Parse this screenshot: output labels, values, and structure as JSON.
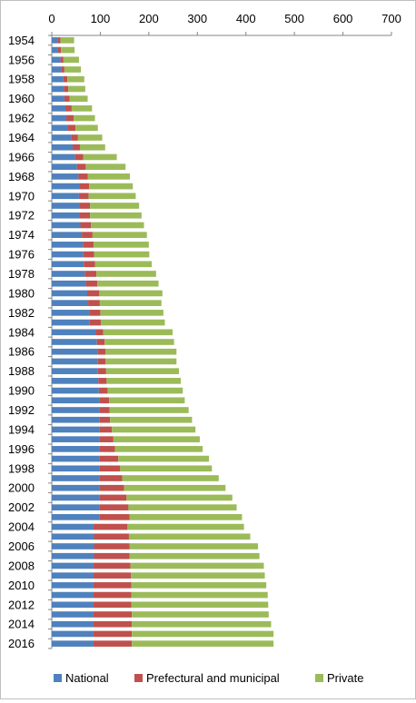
{
  "chart_data": {
    "type": "bar",
    "orientation": "horizontal",
    "stacked": true,
    "xlim": [
      0,
      700
    ],
    "x_ticks": [
      "0",
      "100",
      "200",
      "300",
      "400",
      "500",
      "600",
      "700"
    ],
    "x_axis_position": "top",
    "grid": false,
    "legend_position": "bottom",
    "categories": [
      "1954",
      "1955",
      "1956",
      "1957",
      "1958",
      "1959",
      "1960",
      "1961",
      "1962",
      "1963",
      "1964",
      "1965",
      "1966",
      "1967",
      "1968",
      "1969",
      "1970",
      "1971",
      "1972",
      "1973",
      "1974",
      "1975",
      "1976",
      "1977",
      "1978",
      "1979",
      "1980",
      "1981",
      "1982",
      "1983",
      "1984",
      "1985",
      "1986",
      "1987",
      "1988",
      "1989",
      "1990",
      "1991",
      "1992",
      "1993",
      "1994",
      "1995",
      "1996",
      "1997",
      "1998",
      "1999",
      "2000",
      "2001",
      "2002",
      "2003",
      "2004",
      "2005",
      "2006",
      "2007",
      "2008",
      "2009",
      "2010",
      "2011",
      "2012",
      "2013",
      "2014",
      "2015",
      "2016"
    ],
    "category_labels": [
      "1954",
      "",
      "1956",
      "",
      "1958",
      "",
      "1960",
      "",
      "1962",
      "",
      "1964",
      "",
      "1966",
      "",
      "1968",
      "",
      "1970",
      "",
      "1972",
      "",
      "1974",
      "",
      "1976",
      "",
      "1978",
      "",
      "1980",
      "",
      "1982",
      "",
      "1984",
      "",
      "1986",
      "",
      "1988",
      "",
      "1990",
      "",
      "1992",
      "",
      "1994",
      "",
      "1996",
      "",
      "1998",
      "",
      "2000",
      "",
      "2002",
      "",
      "2004",
      "",
      "2006",
      "",
      "2008",
      "",
      "2010",
      "",
      "2012",
      "",
      "2014",
      "",
      "2016"
    ],
    "series": [
      {
        "name": "National",
        "color": "#4f81bd",
        "values": [
          12,
          13,
          18,
          19,
          24,
          25,
          26,
          28,
          30,
          32,
          40,
          43,
          48,
          52,
          55,
          57,
          56,
          58,
          58,
          59,
          62,
          64,
          65,
          66,
          68,
          70,
          73,
          75,
          77,
          78,
          90,
          93,
          94,
          95,
          95,
          96,
          97,
          98,
          98,
          98,
          99,
          99,
          99,
          99,
          99,
          99,
          99,
          99,
          99,
          99,
          86,
          87,
          87,
          87,
          86,
          86,
          86,
          86,
          86,
          86,
          86,
          86,
          86
        ]
      },
      {
        "name": "Prefectural and municipal",
        "color": "#c0504d",
        "values": [
          6,
          6,
          6,
          7,
          8,
          9,
          11,
          13,
          15,
          17,
          14,
          15,
          17,
          18,
          19,
          20,
          20,
          21,
          21,
          22,
          22,
          22,
          22,
          23,
          24,
          24,
          25,
          24,
          23,
          23,
          16,
          16,
          17,
          16,
          17,
          17,
          18,
          20,
          21,
          22,
          25,
          28,
          31,
          38,
          42,
          46,
          50,
          55,
          59,
          61,
          70,
          72,
          73,
          73,
          76,
          77,
          78,
          78,
          78,
          79,
          79,
          79,
          79
        ]
      },
      {
        "name": "Private",
        "color": "#9bbb59",
        "values": [
          28,
          28,
          32,
          34,
          35,
          35,
          37,
          42,
          44,
          46,
          50,
          52,
          69,
          82,
          87,
          90,
          97,
          101,
          106,
          109,
          112,
          114,
          114,
          117,
          123,
          126,
          130,
          127,
          130,
          132,
          143,
          143,
          146,
          146,
          150,
          153,
          155,
          156,
          163,
          169,
          172,
          178,
          181,
          187,
          189,
          199,
          209,
          218,
          223,
          232,
          240,
          250,
          265,
          268,
          275,
          276,
          278,
          281,
          282,
          282,
          287,
          292,
          292
        ]
      }
    ]
  }
}
